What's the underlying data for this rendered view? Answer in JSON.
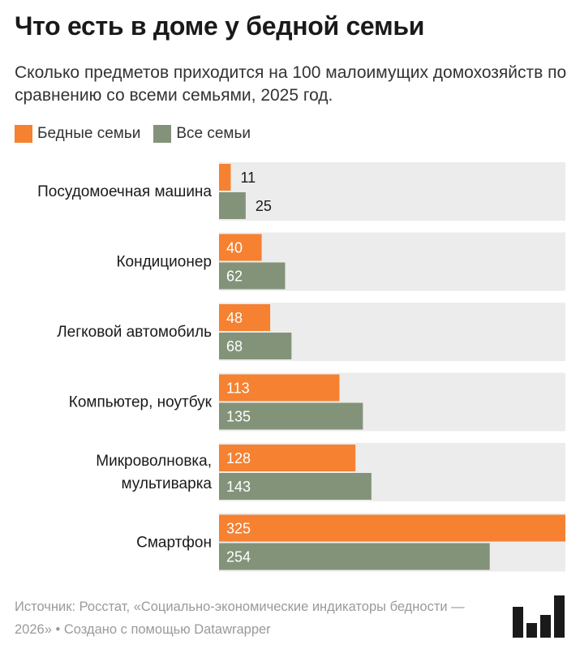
{
  "title": "Что есть в доме у бедной семьи",
  "subtitle": "Сколько предметов приходится на 100 малоимущих домохозяйств по сравнению со всеми семьями, 2025 год.",
  "footer": {
    "source": "Источник: Росстат, «Социально-экономические индикаторы бедности — 2026» • Создано с помощью Datawrapper"
  },
  "colors": {
    "poor": "#f58131",
    "all": "#83937a",
    "row_bg": "#ececec"
  },
  "chart_data": {
    "type": "bar",
    "orientation": "horizontal",
    "categories": [
      [
        "Посудомоечная машина"
      ],
      [
        "Кондиционер"
      ],
      [
        "Легковой автомобиль"
      ],
      [
        "Компьютер, ноутбук"
      ],
      [
        "Микроволновка,",
        "мультиварка"
      ],
      [
        "Смартфон"
      ]
    ],
    "series": [
      {
        "name": "Бедные семьи",
        "values": [
          11,
          40,
          48,
          113,
          128,
          325
        ]
      },
      {
        "name": "Все семьи",
        "values": [
          25,
          62,
          68,
          135,
          143,
          254
        ]
      }
    ],
    "xlim": [
      0,
      325
    ],
    "legend": "top-left",
    "grid": false
  }
}
